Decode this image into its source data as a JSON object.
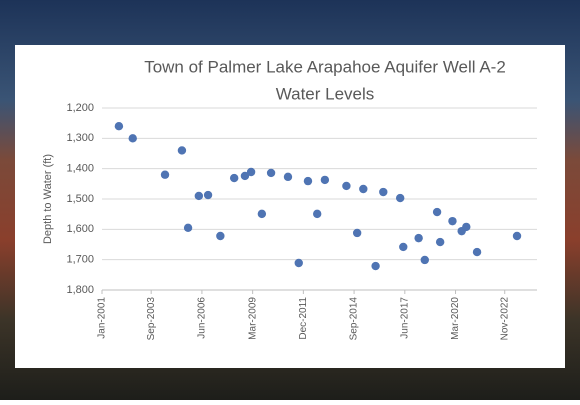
{
  "chart_data": {
    "type": "scatter",
    "title": [
      "Town of Palmer Lake Arapahoe Aquifer Well A-2",
      "Water Levels"
    ],
    "y_label": "Depth to Water (ft)",
    "color": "#4f74b3",
    "grid": true,
    "y_inverted": true,
    "x": [
      "2001-12",
      "2002-09",
      "2004-06",
      "2005-05",
      "2005-09",
      "2006-04",
      "2006-10",
      "2007-06",
      "2008-03",
      "2008-10",
      "2009-02",
      "2009-09",
      "2010-03",
      "2011-02",
      "2011-09",
      "2012-03",
      "2012-09",
      "2013-02",
      "2014-04",
      "2014-11",
      "2015-03",
      "2015-11",
      "2016-04",
      "2017-03",
      "2017-05",
      "2018-03",
      "2018-07",
      "2019-03",
      "2019-05",
      "2020-01",
      "2020-07",
      "2020-10",
      "2021-05",
      "2023-07"
    ],
    "values": [
      1260,
      1300,
      1420,
      1340,
      1595,
      1490,
      1487,
      1622,
      1431,
      1424,
      1411,
      1549,
      1414,
      1427,
      1711,
      1441,
      1549,
      1437,
      1457,
      1612,
      1467,
      1721,
      1477,
      1497,
      1658,
      1629,
      1701,
      1543,
      1642,
      1573,
      1606,
      1592,
      1675,
      1622
    ],
    "xlim": [
      "2001-01",
      "2024-08"
    ],
    "xticks": [
      {
        "value": "2001-01",
        "label": "Jan-2001"
      },
      {
        "value": "2003-09",
        "label": "Sep-2003"
      },
      {
        "value": "2006-06",
        "label": "Jun-2006"
      },
      {
        "value": "2009-03",
        "label": "Mar-2009"
      },
      {
        "value": "2011-12",
        "label": "Dec-2011"
      },
      {
        "value": "2014-09",
        "label": "Sep-2014"
      },
      {
        "value": "2017-06",
        "label": "Jun-2017"
      },
      {
        "value": "2020-03",
        "label": "Mar-2020"
      },
      {
        "value": "2022-11",
        "label": "Nov-2022"
      }
    ],
    "ylim": [
      1200,
      1800
    ],
    "yticks": [
      {
        "value": 1200,
        "label": "1,200"
      },
      {
        "value": 1300,
        "label": "1,300"
      },
      {
        "value": 1400,
        "label": "1,400"
      },
      {
        "value": 1500,
        "label": "1,500"
      },
      {
        "value": 1600,
        "label": "1,600"
      },
      {
        "value": 1700,
        "label": "1,700"
      },
      {
        "value": 1800,
        "label": "1,800"
      }
    ]
  }
}
